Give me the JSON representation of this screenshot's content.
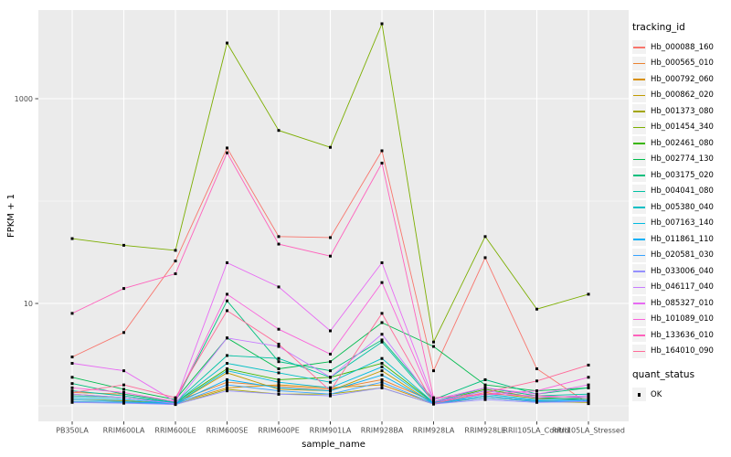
{
  "chart_data": {
    "type": "line",
    "title": "",
    "xlabel": "sample_name",
    "ylabel": "FPKM + 1",
    "y_scale": "log10",
    "y_major_breaks": [
      1000,
      10
    ],
    "y_tick_labels": [
      "1000",
      "10"
    ],
    "y_minor_breaks": [
      100,
      1
    ],
    "grid": true,
    "panel_bg": "#EBEBEB",
    "grid_color": "#FFFFFF",
    "tick_label_color": "#4D4D4D",
    "marker": {
      "shape": "square",
      "color": "#000000",
      "size": 3
    },
    "legend_position": "right",
    "legend": {
      "color_title": "tracking_id",
      "shape_title": "quant_status",
      "shape_items": [
        "OK"
      ]
    },
    "categories": [
      "PB350LA",
      "RRIM600LA",
      "RRIM600LE",
      "RRIM600SE",
      "RRIM600PE",
      "RRIM901LA",
      "RRIM928BA",
      "RRIM928LA",
      "RRIM928LE",
      "RRII105LA_Control",
      "RRII105LA_Stressed"
    ],
    "series": [
      {
        "name": "Hb_000088_160",
        "color": "#F8766D",
        "values": [
          3.0,
          5.2,
          26,
          330,
          45,
          44,
          310,
          2.2,
          28,
          2.3,
          1.05
        ]
      },
      {
        "name": "Hb_000565_010",
        "color": "#EA8331",
        "values": [
          1.35,
          1.3,
          1.1,
          1.7,
          1.55,
          1.45,
          1.8,
          1.1,
          1.5,
          1.25,
          1.2
        ]
      },
      {
        "name": "Hb_000792_060",
        "color": "#D89000",
        "values": [
          1.25,
          1.2,
          1.06,
          1.5,
          1.6,
          1.5,
          1.6,
          1.06,
          1.35,
          1.18,
          1.15
        ]
      },
      {
        "name": "Hb_000862_020",
        "color": "#C09B00",
        "values": [
          1.15,
          1.12,
          1.05,
          2.1,
          1.45,
          1.4,
          2.2,
          1.05,
          1.25,
          1.12,
          1.1
        ]
      },
      {
        "name": "Hb_001373_080",
        "color": "#A3A500",
        "values": [
          1.1,
          1.08,
          1.03,
          1.45,
          1.3,
          1.3,
          1.5,
          1.04,
          1.2,
          1.1,
          1.08
        ]
      },
      {
        "name": "Hb_001454_340",
        "color": "#7CAE00",
        "values": [
          43,
          37,
          33,
          3500,
          490,
          335,
          5400,
          4.2,
          45,
          8.8,
          12.3
        ]
      },
      {
        "name": "Hb_002461_080",
        "color": "#39B600",
        "values": [
          1.3,
          1.2,
          1.08,
          2.3,
          1.8,
          1.9,
          2.6,
          1.08,
          1.45,
          1.2,
          1.15
        ]
      },
      {
        "name": "Hb_002774_130",
        "color": "#00BB4E",
        "values": [
          1.9,
          1.45,
          1.15,
          4.6,
          2.3,
          2.7,
          6.5,
          3.8,
          1.6,
          1.4,
          1.5
        ]
      },
      {
        "name": "Hb_003175_020",
        "color": "#00BF7D",
        "values": [
          1.65,
          1.3,
          1.1,
          10.6,
          2.7,
          2.2,
          4.4,
          1.15,
          1.8,
          1.3,
          1.5
        ]
      },
      {
        "name": "Hb_004041_080",
        "color": "#00C1A3",
        "values": [
          1.4,
          1.25,
          1.08,
          3.1,
          2.9,
          1.9,
          4.2,
          1.1,
          1.5,
          1.25,
          1.3
        ]
      },
      {
        "name": "Hb_005380_040",
        "color": "#00BFC4",
        "values": [
          1.25,
          1.2,
          1.07,
          2.6,
          2.1,
          1.7,
          2.9,
          1.08,
          1.4,
          1.2,
          1.25
        ]
      },
      {
        "name": "Hb_007163_140",
        "color": "#00BAE0",
        "values": [
          1.2,
          1.15,
          1.05,
          2.2,
          1.7,
          1.5,
          2.4,
          1.07,
          1.3,
          1.15,
          1.2
        ]
      },
      {
        "name": "Hb_011861_110",
        "color": "#00B0F6",
        "values": [
          1.15,
          1.1,
          1.05,
          1.8,
          1.5,
          1.4,
          2.0,
          1.06,
          1.25,
          1.12,
          1.15
        ]
      },
      {
        "name": "Hb_020581_030",
        "color": "#35A2FF",
        "values": [
          1.1,
          1.08,
          1.04,
          1.6,
          1.4,
          1.3,
          1.7,
          1.05,
          1.2,
          1.1,
          1.12
        ]
      },
      {
        "name": "Hb_033006_040",
        "color": "#9590FF",
        "values": [
          1.08,
          1.06,
          1.03,
          1.4,
          1.3,
          1.25,
          1.5,
          1.04,
          1.15,
          1.08,
          1.1
        ]
      },
      {
        "name": "Hb_046117_040",
        "color": "#C77CFF",
        "values": [
          1.3,
          1.2,
          1.05,
          4.6,
          3.8,
          1.9,
          5.0,
          1.1,
          1.4,
          1.2,
          1.25
        ]
      },
      {
        "name": "Hb_085327_010",
        "color": "#E76BF3",
        "values": [
          2.6,
          2.2,
          1.1,
          25,
          14.5,
          5.4,
          25,
          1.15,
          1.5,
          1.3,
          1.6
        ]
      },
      {
        "name": "Hb_101089_010",
        "color": "#FA62DB",
        "values": [
          1.5,
          1.35,
          1.1,
          12.3,
          5.6,
          3.2,
          16,
          1.1,
          1.3,
          1.4,
          1.9
        ]
      },
      {
        "name": "Hb_133636_010",
        "color": "#FF62BC",
        "values": [
          8,
          14,
          19.5,
          296,
          38,
          29,
          235,
          1.2,
          1.3,
          1.25,
          1.2
        ]
      },
      {
        "name": "Hb_164010_090",
        "color": "#FF6A98",
        "values": [
          1.35,
          1.6,
          1.2,
          8.5,
          4.0,
          1.4,
          8.0,
          1.05,
          1.35,
          1.75,
          2.5
        ]
      }
    ]
  }
}
